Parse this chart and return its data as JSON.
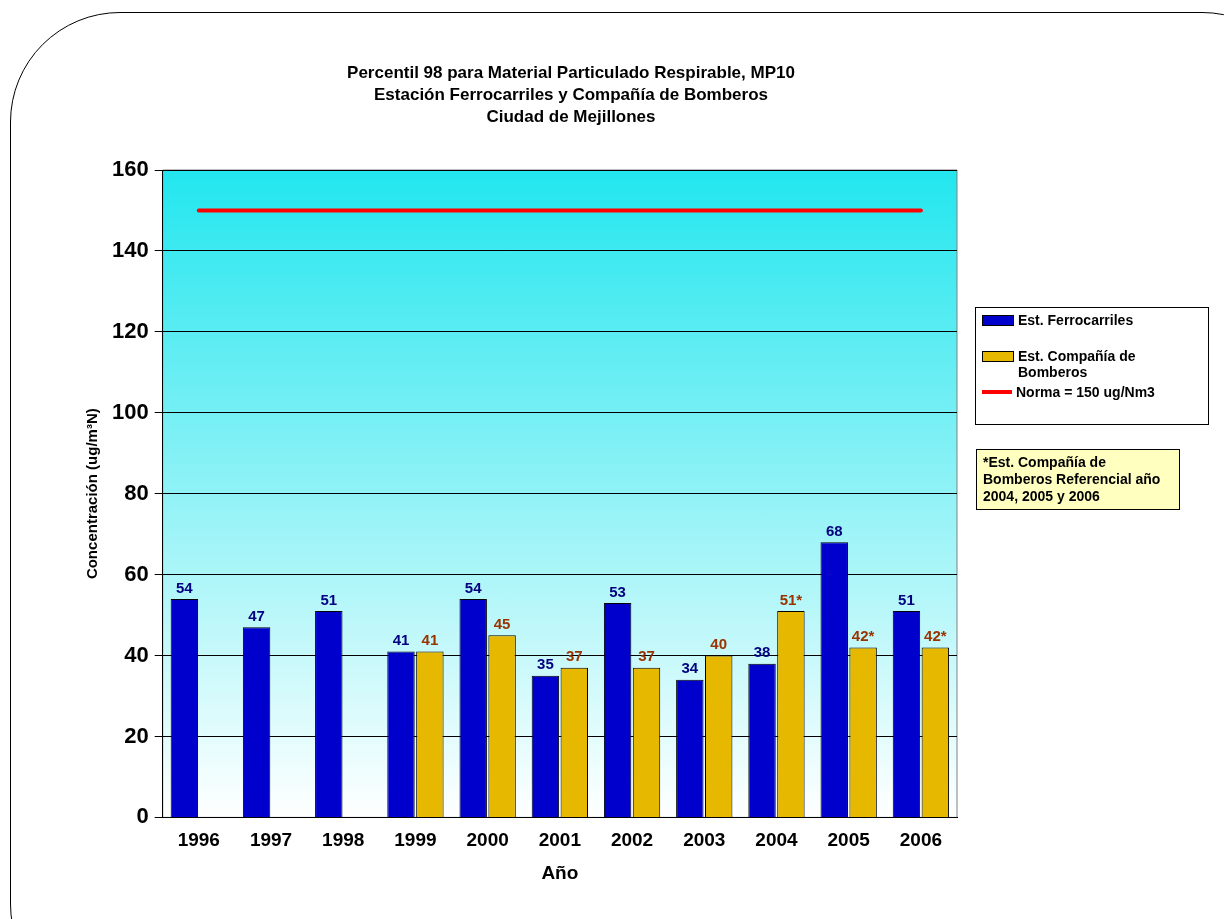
{
  "chart_data": {
    "type": "bar",
    "title": "Percentil 98 para Material Particulado Respirable, MP10\nEstación Ferrocarriles y Compañía de Bomberos\nCiudad de Mejillones",
    "xlabel": "Año",
    "ylabel": "Concentración (ug/m³N)",
    "categories": [
      "1996",
      "1997",
      "1998",
      "1999",
      "2000",
      "2001",
      "2002",
      "2003",
      "2004",
      "2005",
      "2006"
    ],
    "series": [
      {
        "name": "Est. Ferrocarriles",
        "color": "#0000cc",
        "values": [
          54,
          47,
          51,
          41,
          54,
          35,
          53,
          34,
          38,
          68,
          51
        ],
        "value_labels": [
          "54",
          "47",
          "51",
          "41",
          "54",
          "35",
          "53",
          "34",
          "38",
          "68",
          "51"
        ]
      },
      {
        "name": "Est. Compañía de Bomberos",
        "color": "#e6b800",
        "values": [
          null,
          null,
          null,
          41,
          45,
          37,
          37,
          40,
          51,
          42,
          42
        ],
        "value_labels": [
          null,
          null,
          null,
          "41",
          "45",
          "37",
          "37",
          "40",
          "51*",
          "42*",
          "42*"
        ]
      }
    ],
    "ref_lines": [
      {
        "axis": "y",
        "value": 150,
        "label": "Norma = 150 ug/Nm3",
        "color": "#ff0000"
      }
    ],
    "annotations": [
      "*Est. Compañía de Bomberos Referencial año 2004, 2005 y 2006"
    ],
    "ylim": [
      0,
      160
    ],
    "yticks": [
      0,
      20,
      40,
      60,
      80,
      100,
      120,
      140,
      160
    ],
    "grid": "y",
    "legend": "right"
  }
}
